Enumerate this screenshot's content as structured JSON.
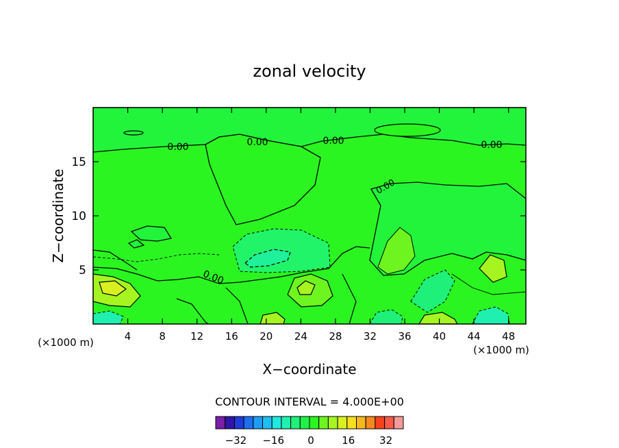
{
  "chart_data": {
    "type": "contour",
    "title": "zonal velocity",
    "xlabel": "X−coordinate",
    "ylabel": "Z−coordinate",
    "x_unit_label": "(×1000 m)",
    "x_unit_label_right": "(×1000 m)",
    "xlim": [
      0,
      50
    ],
    "ylim": [
      0,
      20
    ],
    "x_ticks": [
      4,
      8,
      12,
      16,
      20,
      24,
      28,
      32,
      36,
      40,
      44,
      48
    ],
    "y_ticks": [
      5,
      10,
      15
    ],
    "contour_interval_label": "CONTOUR INTERVAL = 4.000E+00",
    "contour_labels": [
      "0.00",
      "0.00",
      "0.00",
      "0.00",
      "0.00",
      "0.00"
    ],
    "colorbar": {
      "levels": [
        -40,
        -36,
        -32,
        -28,
        -24,
        -20,
        -16,
        -12,
        -8,
        -4,
        0,
        4,
        8,
        12,
        16,
        20,
        24,
        28,
        32,
        36
      ],
      "colors": [
        "#7a1fa8",
        "#2f16a8",
        "#1f3ad8",
        "#1f6ef0",
        "#1f9cf5",
        "#1fbef0",
        "#1fe8e0",
        "#1ff0b0",
        "#1ff07a",
        "#1ff04a",
        "#2af520",
        "#6ef520",
        "#a6f520",
        "#d8f020",
        "#f5e01f",
        "#f5b81f",
        "#f5881f",
        "#f5421f",
        "#f55a4a",
        "#f59a9a"
      ],
      "tick_labels": [
        "−32",
        "−16",
        "0",
        "16",
        "32"
      ],
      "tick_values": [
        -32,
        -16,
        0,
        16,
        32
      ]
    },
    "background_color": "#2af520"
  }
}
